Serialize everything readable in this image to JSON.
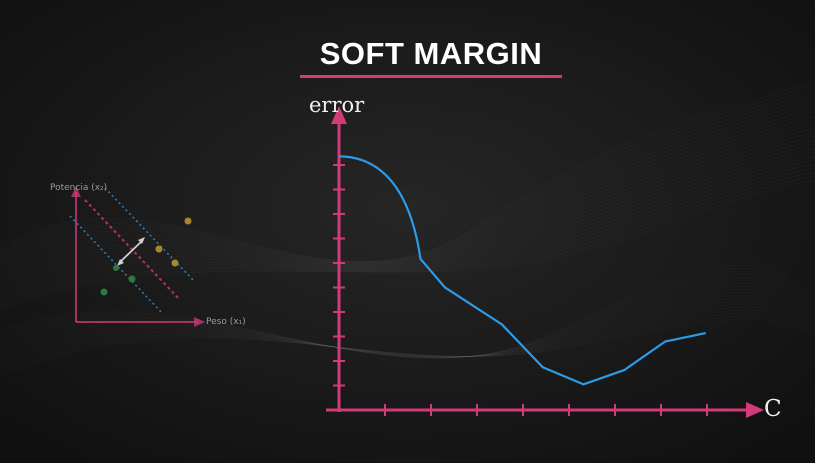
{
  "title": "SOFT MARGIN",
  "colors": {
    "background": "#161616",
    "accent": "#d23a7a",
    "curve": "#2e9be8",
    "points_yellow": "#a58a2a",
    "points_green": "#2e7a3c",
    "margin_blue": "#2e9be8",
    "margin_red": "#d23a7a"
  },
  "inset": {
    "y_label": "Potencia (x₂)",
    "x_label": "Peso (x₁)"
  },
  "chart_data": {
    "type": "line",
    "title": "",
    "xlabel": "C",
    "ylabel": "error",
    "x": [
      0,
      0.5,
      1,
      1.3,
      2,
      2.5,
      3,
      3.5,
      4,
      4.5
    ],
    "series": [
      {
        "values": [
          8.9,
          7.6,
          5.3,
          4.3,
          3.0,
          1.5,
          0.9,
          1.4,
          2.4,
          2.7
        ]
      }
    ],
    "xlim": [
      0,
      4.5
    ],
    "ylim": [
      0,
      10
    ],
    "grid": false
  }
}
